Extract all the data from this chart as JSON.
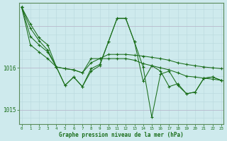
{
  "bg_color": "#ceeaed",
  "grid_color_major": "#b8b8cc",
  "grid_color_minor": "#b8d8dc",
  "line_color": "#1a6e1a",
  "marker_color": "#1a6e1a",
  "xlabel": "Graphe pression niveau de la mer (hPa)",
  "xlabel_color": "#1a6e1a",
  "xticks": [
    0,
    1,
    2,
    3,
    4,
    5,
    6,
    7,
    8,
    9,
    10,
    11,
    12,
    13,
    14,
    15,
    16,
    17,
    18,
    19,
    20,
    21,
    22,
    23
  ],
  "ytick_labels": [
    "1016",
    "1015"
  ],
  "ytick_vals": [
    1016.0,
    1015.0
  ],
  "ylim": [
    1014.65,
    1017.55
  ],
  "xlim": [
    -0.3,
    23.3
  ],
  "series": [
    [
      1017.45,
      1017.05,
      1016.72,
      1016.55,
      1016.02,
      1015.98,
      1015.95,
      1015.88,
      1016.12,
      1016.22,
      1016.32,
      1016.32,
      1016.32,
      1016.3,
      1016.28,
      1016.25,
      1016.22,
      1016.18,
      1016.12,
      1016.08,
      1016.05,
      1016.02,
      1016.0,
      1015.98
    ],
    [
      1017.45,
      1016.75,
      1016.55,
      1016.38,
      1016.02,
      1015.98,
      1015.95,
      1015.88,
      1016.22,
      1016.22,
      1016.22,
      1016.22,
      1016.22,
      1016.18,
      1016.1,
      1016.05,
      1016.0,
      1015.95,
      1015.88,
      1015.8,
      1015.78,
      1015.75,
      1015.73,
      1015.7
    ],
    [
      1017.45,
      1016.55,
      1016.38,
      1016.22,
      1016.02,
      1015.58,
      1015.78,
      1015.55,
      1015.98,
      1016.08,
      1016.62,
      1017.18,
      1017.18,
      1016.62,
      1016.02,
      1014.82,
      1015.85,
      1015.92,
      1015.58,
      1015.38,
      1015.42,
      1015.75,
      1015.78,
      1015.7
    ],
    [
      1017.45,
      1016.95,
      1016.65,
      1016.42,
      1016.02,
      1015.58,
      1015.78,
      1015.55,
      1015.92,
      1016.05,
      1016.62,
      1017.18,
      1017.18,
      1016.62,
      1015.68,
      1016.05,
      1015.92,
      1015.55,
      1015.62,
      1015.38,
      1015.42,
      1015.75,
      1015.78,
      1015.7
    ]
  ]
}
